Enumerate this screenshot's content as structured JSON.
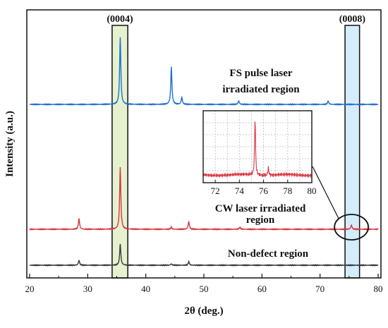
{
  "chart_data": {
    "type": "line",
    "xlabel": "2θ (deg.)",
    "ylabel": "Intensity (a.u.)",
    "xlim": [
      20,
      80
    ],
    "xticks": [
      "20",
      "30",
      "40",
      "50",
      "60",
      "70",
      "80"
    ],
    "grid": false,
    "yticks_visible": false,
    "highlight_bands": [
      {
        "label": "(0004)",
        "x_range": [
          34.2,
          36.9
        ],
        "color": "#e6f2cf"
      },
      {
        "label": "(0008)",
        "x_range": [
          74.3,
          76.8
        ],
        "color": "#d5ecfb"
      }
    ],
    "series": [
      {
        "label": "FS pulse laser irradiated region",
        "color": "#1f6fd0",
        "peaks": [
          {
            "x": 35.6,
            "height": 95
          },
          {
            "x": 44.4,
            "height": 53
          },
          {
            "x": 46.2,
            "height": 10
          },
          {
            "x": 56.0,
            "height": 5
          },
          {
            "x": 71.4,
            "height": 5
          }
        ]
      },
      {
        "label": "CW laser irradiated region",
        "color": "#d9363e",
        "peaks": [
          {
            "x": 28.5,
            "height": 15
          },
          {
            "x": 35.6,
            "height": 88
          },
          {
            "x": 44.4,
            "height": 3
          },
          {
            "x": 47.4,
            "height": 11
          },
          {
            "x": 56.2,
            "height": 3
          },
          {
            "x": 75.4,
            "height": 6
          }
        ]
      },
      {
        "label": "Non-defect region",
        "color": "#3a3a3a",
        "peaks": [
          {
            "x": 28.5,
            "height": 7
          },
          {
            "x": 35.6,
            "height": 30
          },
          {
            "x": 44.4,
            "height": 2
          },
          {
            "x": 47.4,
            "height": 5
          }
        ]
      }
    ],
    "inset": {
      "series": "CW laser irradiated region",
      "xlim": [
        71,
        80
      ],
      "xticks": [
        "72",
        "74",
        "76",
        "78",
        "80"
      ],
      "grid": true,
      "peaks": [
        {
          "x": 75.3,
          "height": 82
        },
        {
          "x": 76.4,
          "height": 11
        }
      ]
    }
  }
}
